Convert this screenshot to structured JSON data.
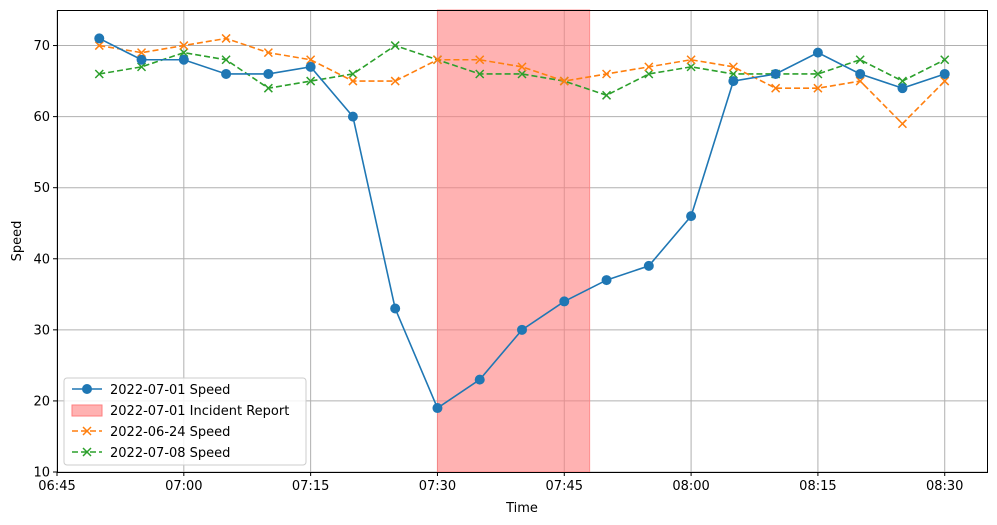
{
  "chart_data": {
    "type": "line",
    "title": "",
    "xlabel": "Time",
    "ylabel": "Speed",
    "grid": true,
    "legend_position": "lower-left",
    "x_ticks": [
      "06:45",
      "07:00",
      "07:15",
      "07:30",
      "07:45",
      "08:00",
      "08:15",
      "08:30"
    ],
    "y_ticks": [
      10,
      20,
      30,
      40,
      50,
      60,
      70
    ],
    "xlim": [
      "06:45",
      "08:35"
    ],
    "ylim": [
      10,
      75
    ],
    "x": [
      "06:50",
      "06:55",
      "07:00",
      "07:05",
      "07:10",
      "07:15",
      "07:20",
      "07:25",
      "07:30",
      "07:35",
      "07:40",
      "07:45",
      "07:50",
      "07:55",
      "08:00",
      "08:05",
      "08:10",
      "08:15",
      "08:20",
      "08:25",
      "08:30"
    ],
    "incident": {
      "name": "2022-07-01 Incident Report",
      "start": "07:30",
      "end": "07:48",
      "color": "#ff7f7f"
    },
    "series": [
      {
        "name": "2022-07-01 Speed",
        "color": "#1f77b4",
        "linestyle": "solid",
        "marker": "circle",
        "values": [
          71,
          68,
          68,
          66,
          66,
          67,
          60,
          33,
          19,
          23,
          30,
          34,
          37,
          39,
          46,
          65,
          66,
          69,
          66,
          64,
          66
        ]
      },
      {
        "name": "2022-06-24 Speed",
        "color": "#ff7f0e",
        "linestyle": "dashed",
        "marker": "x",
        "values": [
          70,
          69,
          70,
          71,
          69,
          68,
          65,
          65,
          68,
          68,
          67,
          65,
          66,
          67,
          68,
          67,
          64,
          64,
          65,
          59,
          65
        ]
      },
      {
        "name": "2022-07-08 Speed",
        "color": "#2ca02c",
        "linestyle": "dashed",
        "marker": "x",
        "values": [
          66,
          67,
          69,
          68,
          64,
          65,
          66,
          70,
          68,
          66,
          66,
          65,
          63,
          66,
          67,
          66,
          66,
          66,
          68,
          65,
          68
        ]
      }
    ],
    "legend_order": [
      "2022-07-01 Speed",
      "2022-07-01 Incident Report",
      "2022-06-24 Speed",
      "2022-07-08 Speed"
    ]
  }
}
